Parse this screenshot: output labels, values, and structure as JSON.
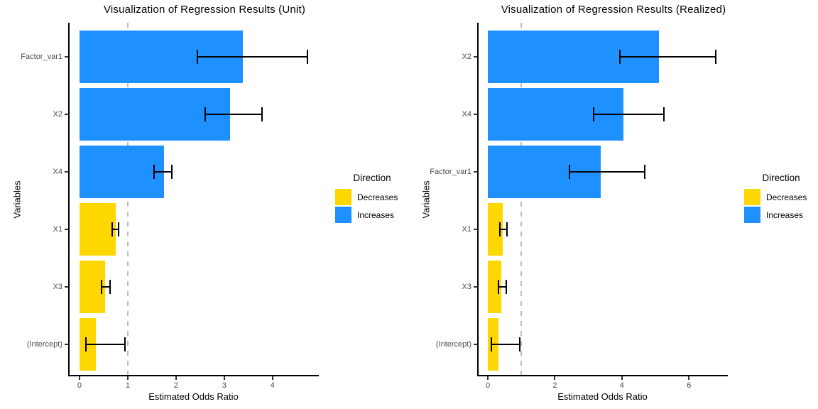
{
  "figure": {
    "background": "#ffffff",
    "bar_blue": "#1E90FF",
    "bar_yellow": "#FFD700"
  },
  "chart_data": [
    {
      "type": "bar",
      "orientation": "horizontal",
      "title": "Visualization of Regression Results (Unit)",
      "xlabel": "Estimated Odds Ratio",
      "ylabel": "Variables",
      "categories": [
        "Factor_var1",
        "X2",
        "X4",
        "X1",
        "X3",
        "(Intercept)"
      ],
      "values": [
        3.38,
        3.12,
        1.75,
        0.75,
        0.53,
        0.34
      ],
      "ci_low": [
        2.45,
        2.6,
        1.55,
        0.68,
        0.46,
        0.13
      ],
      "ci_high": [
        4.72,
        3.78,
        1.91,
        0.81,
        0.63,
        0.94
      ],
      "direction": [
        "Increases",
        "Increases",
        "Increases",
        "Decreases",
        "Decreases",
        "Decreases"
      ],
      "colors": {
        "Decreases": "#FFD700",
        "Increases": "#1E90FF"
      },
      "xticks": [
        0,
        1,
        2,
        3,
        4
      ],
      "xlim": [
        -0.235,
        4.96
      ],
      "reference_line_x": 1,
      "grid": "off",
      "legend": {
        "title": "Direction",
        "position": "right",
        "items": [
          {
            "label": "Decreases",
            "color": "#FFD700"
          },
          {
            "label": "Increases",
            "color": "#1E90FF"
          }
        ]
      }
    },
    {
      "type": "bar",
      "orientation": "horizontal",
      "title": "Visualization of Regression Results (Realized)",
      "xlabel": "Estimated Odds Ratio",
      "ylabel": "Variables",
      "categories": [
        "X2",
        "X4",
        "Factor_var1",
        "X1",
        "X3",
        "(Intercept)"
      ],
      "values": [
        5.11,
        4.05,
        3.36,
        0.45,
        0.41,
        0.32
      ],
      "ci_low": [
        3.93,
        3.16,
        2.43,
        0.35,
        0.32,
        0.1
      ],
      "ci_high": [
        6.79,
        5.25,
        4.69,
        0.56,
        0.54,
        0.95
      ],
      "direction": [
        "Increases",
        "Increases",
        "Increases",
        "Decreases",
        "Decreases",
        "Decreases"
      ],
      "colors": {
        "Decreases": "#FFD700",
        "Increases": "#1E90FF"
      },
      "xticks": [
        0,
        2,
        4,
        6
      ],
      "xlim": [
        -0.32,
        7.16
      ],
      "reference_line_x": 1,
      "grid": "off",
      "legend": {
        "title": "Direction",
        "position": "right",
        "items": [
          {
            "label": "Decreases",
            "color": "#FFD700"
          },
          {
            "label": "Increases",
            "color": "#1E90FF"
          }
        ]
      }
    }
  ]
}
